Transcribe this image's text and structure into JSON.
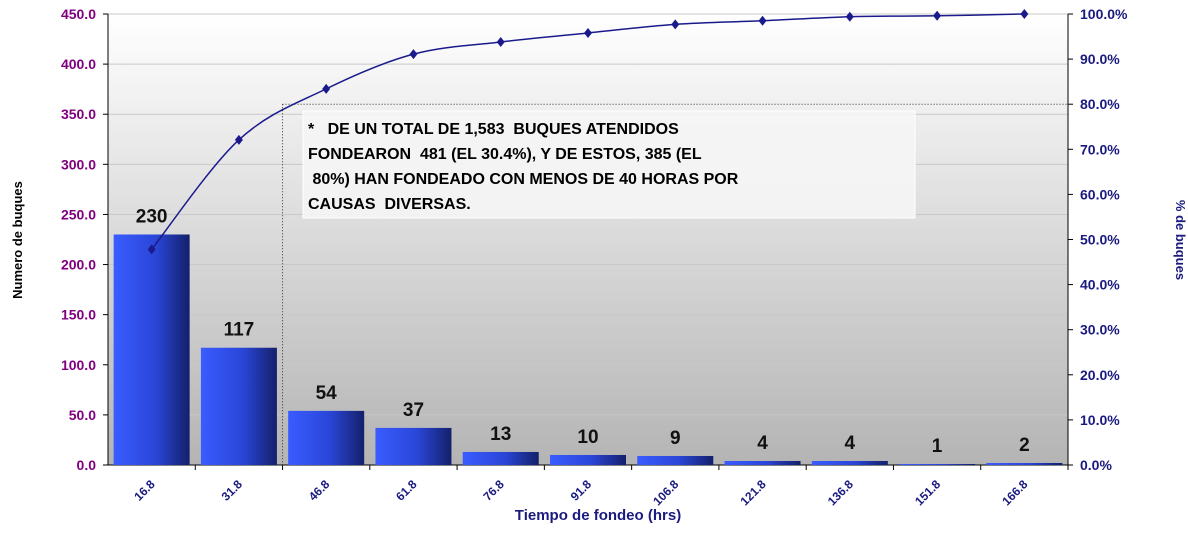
{
  "chart_data": {
    "type": "pareto",
    "x_label": "Tiempo de fondeo (hrs)",
    "y_label": "Numero de buques",
    "y2_label": "% de buques",
    "categories": [
      "16.8",
      "31.8",
      "46.8",
      "61.8",
      "76.8",
      "91.8",
      "106.8",
      "121.8",
      "136.8",
      "151.8",
      "166.8"
    ],
    "series": [
      {
        "type": "bar",
        "color": "#3355ff",
        "values": [
          230,
          117,
          54,
          37,
          13,
          10,
          9,
          4,
          4,
          1,
          2
        ]
      },
      {
        "type": "line",
        "axis": "y2",
        "color": "#1a1a8c",
        "values": [
          47.8,
          72.1,
          83.4,
          91.1,
          93.8,
          95.8,
          97.7,
          98.5,
          99.4,
          99.6,
          100
        ]
      }
    ],
    "ylim": [
      0,
      450
    ],
    "yticks": [
      {
        "value": 0,
        "label": "0.0"
      },
      {
        "value": 50,
        "label": "50.0"
      },
      {
        "value": 100,
        "label": "100.0"
      },
      {
        "value": 150,
        "label": "150.0"
      },
      {
        "value": 200,
        "label": "200.0"
      },
      {
        "value": 250,
        "label": "250.0"
      },
      {
        "value": 300,
        "label": "300.0"
      },
      {
        "value": 350,
        "label": "350.0"
      },
      {
        "value": 400,
        "label": "400.0"
      },
      {
        "value": 450,
        "label": "450.0"
      }
    ],
    "y2lim": [
      0,
      100
    ],
    "y2ticks": [
      {
        "value": 0,
        "label": "0.0%"
      },
      {
        "value": 10,
        "label": "10.0%"
      },
      {
        "value": 20,
        "label": "20.0%"
      },
      {
        "value": 30,
        "label": "30.0%"
      },
      {
        "value": 40,
        "label": "40.0%"
      },
      {
        "value": 50,
        "label": "50.0%"
      },
      {
        "value": 60,
        "label": "60.0%"
      },
      {
        "value": 70,
        "label": "70.0%"
      },
      {
        "value": 80,
        "label": "80.0%"
      },
      {
        "value": 90,
        "label": "90.0%"
      },
      {
        "value": 100,
        "label": "100.0%"
      }
    ],
    "reference_y2": 80,
    "grid": true,
    "annotation": [
      "*   DE UN TOTAL DE 1,583  BUQUES ATENDIDOS",
      "FONDEARON  481 (EL 30.4%), Y DE ESTOS, 385 (EL",
      " 80%) HAN FONDEADO CON MENOS DE 40 HORAS POR",
      "CAUSAS  DIVERSAS."
    ]
  }
}
